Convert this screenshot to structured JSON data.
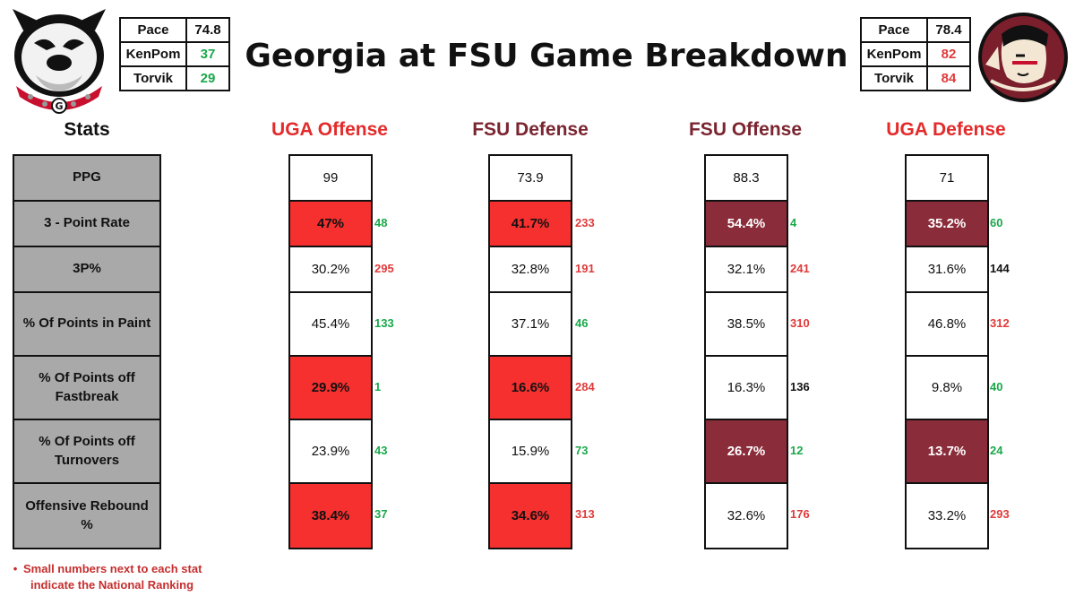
{
  "title": "Georgia at FSU Game Breakdown",
  "colors": {
    "red_highlight": "#f5302f",
    "maroon_highlight": "#8a2c3a",
    "rank_good": "#1aa84a",
    "rank_bad": "#e03a3a"
  },
  "teams": {
    "uga": {
      "logo": "georgia-bulldog-logo",
      "metrics": [
        {
          "label": "Pace",
          "value": "74.8",
          "color": "dark"
        },
        {
          "label": "KenPom",
          "value": "37",
          "color": "green"
        },
        {
          "label": "Torvik",
          "value": "29",
          "color": "green"
        }
      ]
    },
    "fsu": {
      "logo": "fsu-seminole-logo",
      "metrics": [
        {
          "label": "Pace",
          "value": "78.4",
          "color": "dark"
        },
        {
          "label": "KenPom",
          "value": "82",
          "color": "red"
        },
        {
          "label": "Torvik",
          "value": "84",
          "color": "red"
        }
      ]
    }
  },
  "headers": {
    "stats": "Stats",
    "uga_offense": "UGA Offense",
    "fsu_defense": "FSU Defense",
    "fsu_offense": "FSU Offense",
    "uga_defense": "UGA Defense"
  },
  "stats": [
    "PPG",
    "3 - Point Rate",
    "3P%",
    "% Of Points in Paint",
    "% Of Points off Fastbreak",
    "% Of Points off Turnovers",
    "Offensive Rebound %"
  ],
  "columns": {
    "uga_offense": [
      {
        "value": "99",
        "rank": "",
        "hl": "",
        "rc": ""
      },
      {
        "value": "47%",
        "rank": "48",
        "hl": "red",
        "rc": "green"
      },
      {
        "value": "30.2%",
        "rank": "295",
        "hl": "",
        "rc": "red"
      },
      {
        "value": "45.4%",
        "rank": "133",
        "hl": "",
        "rc": "green"
      },
      {
        "value": "29.9%",
        "rank": "1",
        "hl": "red",
        "rc": "green"
      },
      {
        "value": "23.9%",
        "rank": "43",
        "hl": "",
        "rc": "green"
      },
      {
        "value": "38.4%",
        "rank": "37",
        "hl": "red",
        "rc": "green"
      }
    ],
    "fsu_defense": [
      {
        "value": "73.9",
        "rank": "",
        "hl": "",
        "rc": ""
      },
      {
        "value": "41.7%",
        "rank": "233",
        "hl": "red",
        "rc": "red"
      },
      {
        "value": "32.8%",
        "rank": "191",
        "hl": "",
        "rc": "red"
      },
      {
        "value": "37.1%",
        "rank": "46",
        "hl": "",
        "rc": "green"
      },
      {
        "value": "16.6%",
        "rank": "284",
        "hl": "red",
        "rc": "red"
      },
      {
        "value": "15.9%",
        "rank": "73",
        "hl": "",
        "rc": "green"
      },
      {
        "value": "34.6%",
        "rank": "313",
        "hl": "red",
        "rc": "red"
      }
    ],
    "fsu_offense": [
      {
        "value": "88.3",
        "rank": "",
        "hl": "",
        "rc": ""
      },
      {
        "value": "54.4%",
        "rank": "4",
        "hl": "maroon",
        "rc": "green"
      },
      {
        "value": "32.1%",
        "rank": "241",
        "hl": "",
        "rc": "red"
      },
      {
        "value": "38.5%",
        "rank": "310",
        "hl": "",
        "rc": "red"
      },
      {
        "value": "16.3%",
        "rank": "136",
        "hl": "",
        "rc": "dark"
      },
      {
        "value": "26.7%",
        "rank": "12",
        "hl": "maroon",
        "rc": "green"
      },
      {
        "value": "32.6%",
        "rank": "176",
        "hl": "",
        "rc": "red"
      }
    ],
    "uga_defense": [
      {
        "value": "71",
        "rank": "",
        "hl": "",
        "rc": ""
      },
      {
        "value": "35.2%",
        "rank": "60",
        "hl": "maroon",
        "rc": "green"
      },
      {
        "value": "31.6%",
        "rank": "144",
        "hl": "",
        "rc": "dark"
      },
      {
        "value": "46.8%",
        "rank": "312",
        "hl": "",
        "rc": "red"
      },
      {
        "value": "9.8%",
        "rank": "40",
        "hl": "",
        "rc": "green"
      },
      {
        "value": "13.7%",
        "rank": "24",
        "hl": "maroon",
        "rc": "green"
      },
      {
        "value": "33.2%",
        "rank": "293",
        "hl": "",
        "rc": "red"
      }
    ]
  },
  "footnote": {
    "line1": "Small numbers next to each stat",
    "line2": "indicate the National Ranking"
  }
}
